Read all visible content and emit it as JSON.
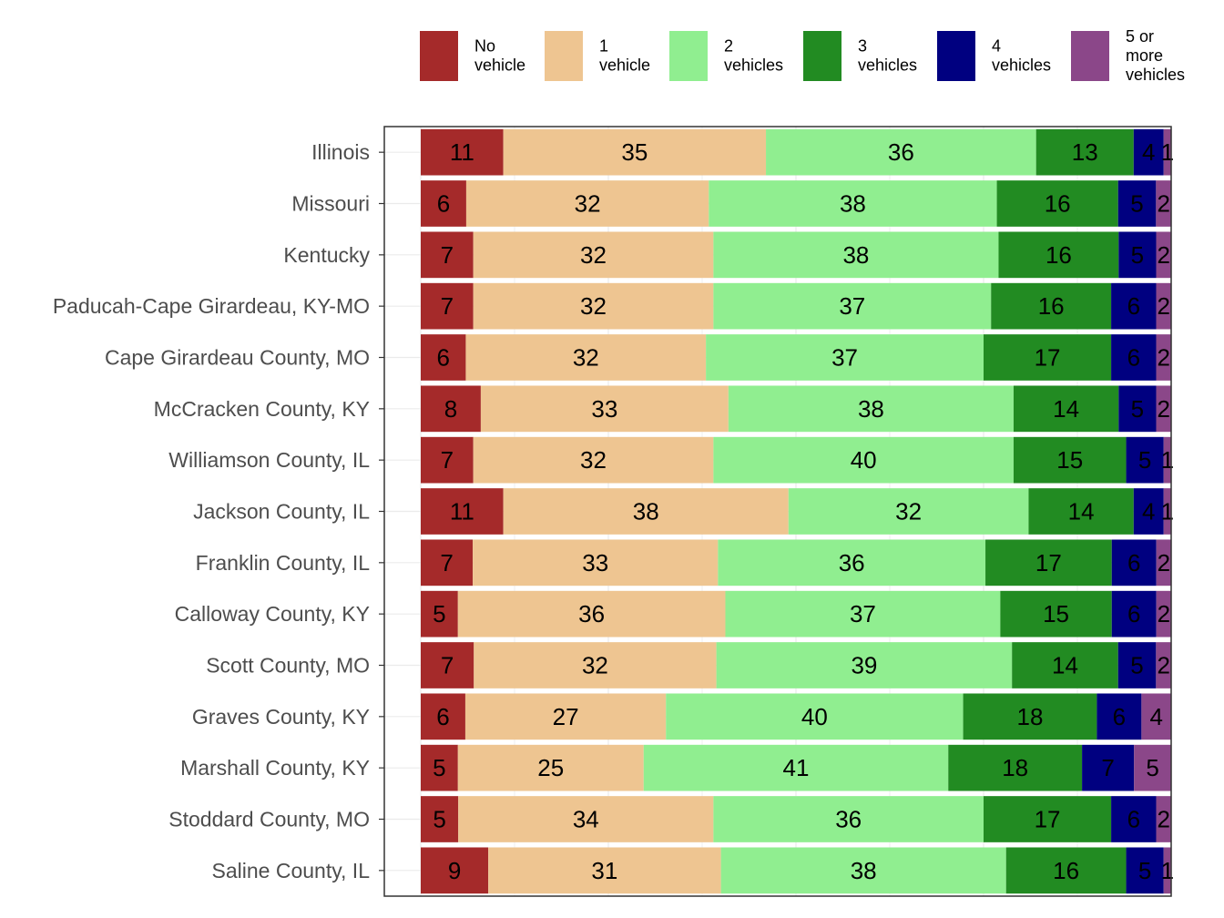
{
  "chart_data": {
    "type": "bar",
    "orientation": "horizontal",
    "stacked": true,
    "normalized": true,
    "title": "",
    "xlabel": "",
    "ylabel": "",
    "xlim": [
      0,
      100
    ],
    "grid": true,
    "legend_position": "top",
    "categories": [
      "Illinois",
      "Missouri",
      "Kentucky",
      "Paducah-Cape Girardeau, KY-MO",
      "Cape Girardeau County, MO",
      "McCracken County, KY",
      "Williamson County, IL",
      "Jackson County, IL",
      "Franklin County, IL",
      "Calloway County, KY",
      "Scott County, MO",
      "Graves County, KY",
      "Marshall County, KY",
      "Stoddard County, MO",
      "Saline County, IL"
    ],
    "series": [
      {
        "name": "No vehicle",
        "legend_lines": [
          "No",
          "vehicle"
        ],
        "color": "#A52A2A",
        "values": [
          11,
          6,
          7,
          7,
          6,
          8,
          7,
          11,
          7,
          5,
          7,
          6,
          5,
          5,
          9
        ]
      },
      {
        "name": "1 vehicle",
        "legend_lines": [
          "1",
          "vehicle"
        ],
        "color": "#EEC591",
        "values": [
          35,
          32,
          32,
          32,
          32,
          33,
          32,
          38,
          33,
          36,
          32,
          27,
          25,
          34,
          31
        ]
      },
      {
        "name": "2 vehicles",
        "legend_lines": [
          "2",
          "vehicles"
        ],
        "color": "#90EE90",
        "values": [
          36,
          38,
          38,
          37,
          37,
          38,
          40,
          32,
          36,
          37,
          39,
          40,
          41,
          36,
          38
        ]
      },
      {
        "name": "3 vehicles",
        "legend_lines": [
          "3",
          "vehicles"
        ],
        "color": "#228B22",
        "values": [
          13,
          16,
          16,
          16,
          17,
          14,
          15,
          14,
          17,
          15,
          14,
          18,
          18,
          17,
          16
        ]
      },
      {
        "name": "4 vehicles",
        "legend_lines": [
          "4",
          "vehicles"
        ],
        "color": "#000080",
        "values": [
          4,
          5,
          5,
          6,
          6,
          5,
          5,
          4,
          6,
          6,
          5,
          6,
          7,
          6,
          5
        ]
      },
      {
        "name": "5 or more vehicles",
        "legend_lines": [
          "5 or",
          "more",
          "vehicles"
        ],
        "color": "#8B4789",
        "values": [
          1,
          2,
          2,
          2,
          2,
          2,
          1,
          1,
          2,
          2,
          2,
          4,
          5,
          2,
          1
        ]
      }
    ]
  }
}
